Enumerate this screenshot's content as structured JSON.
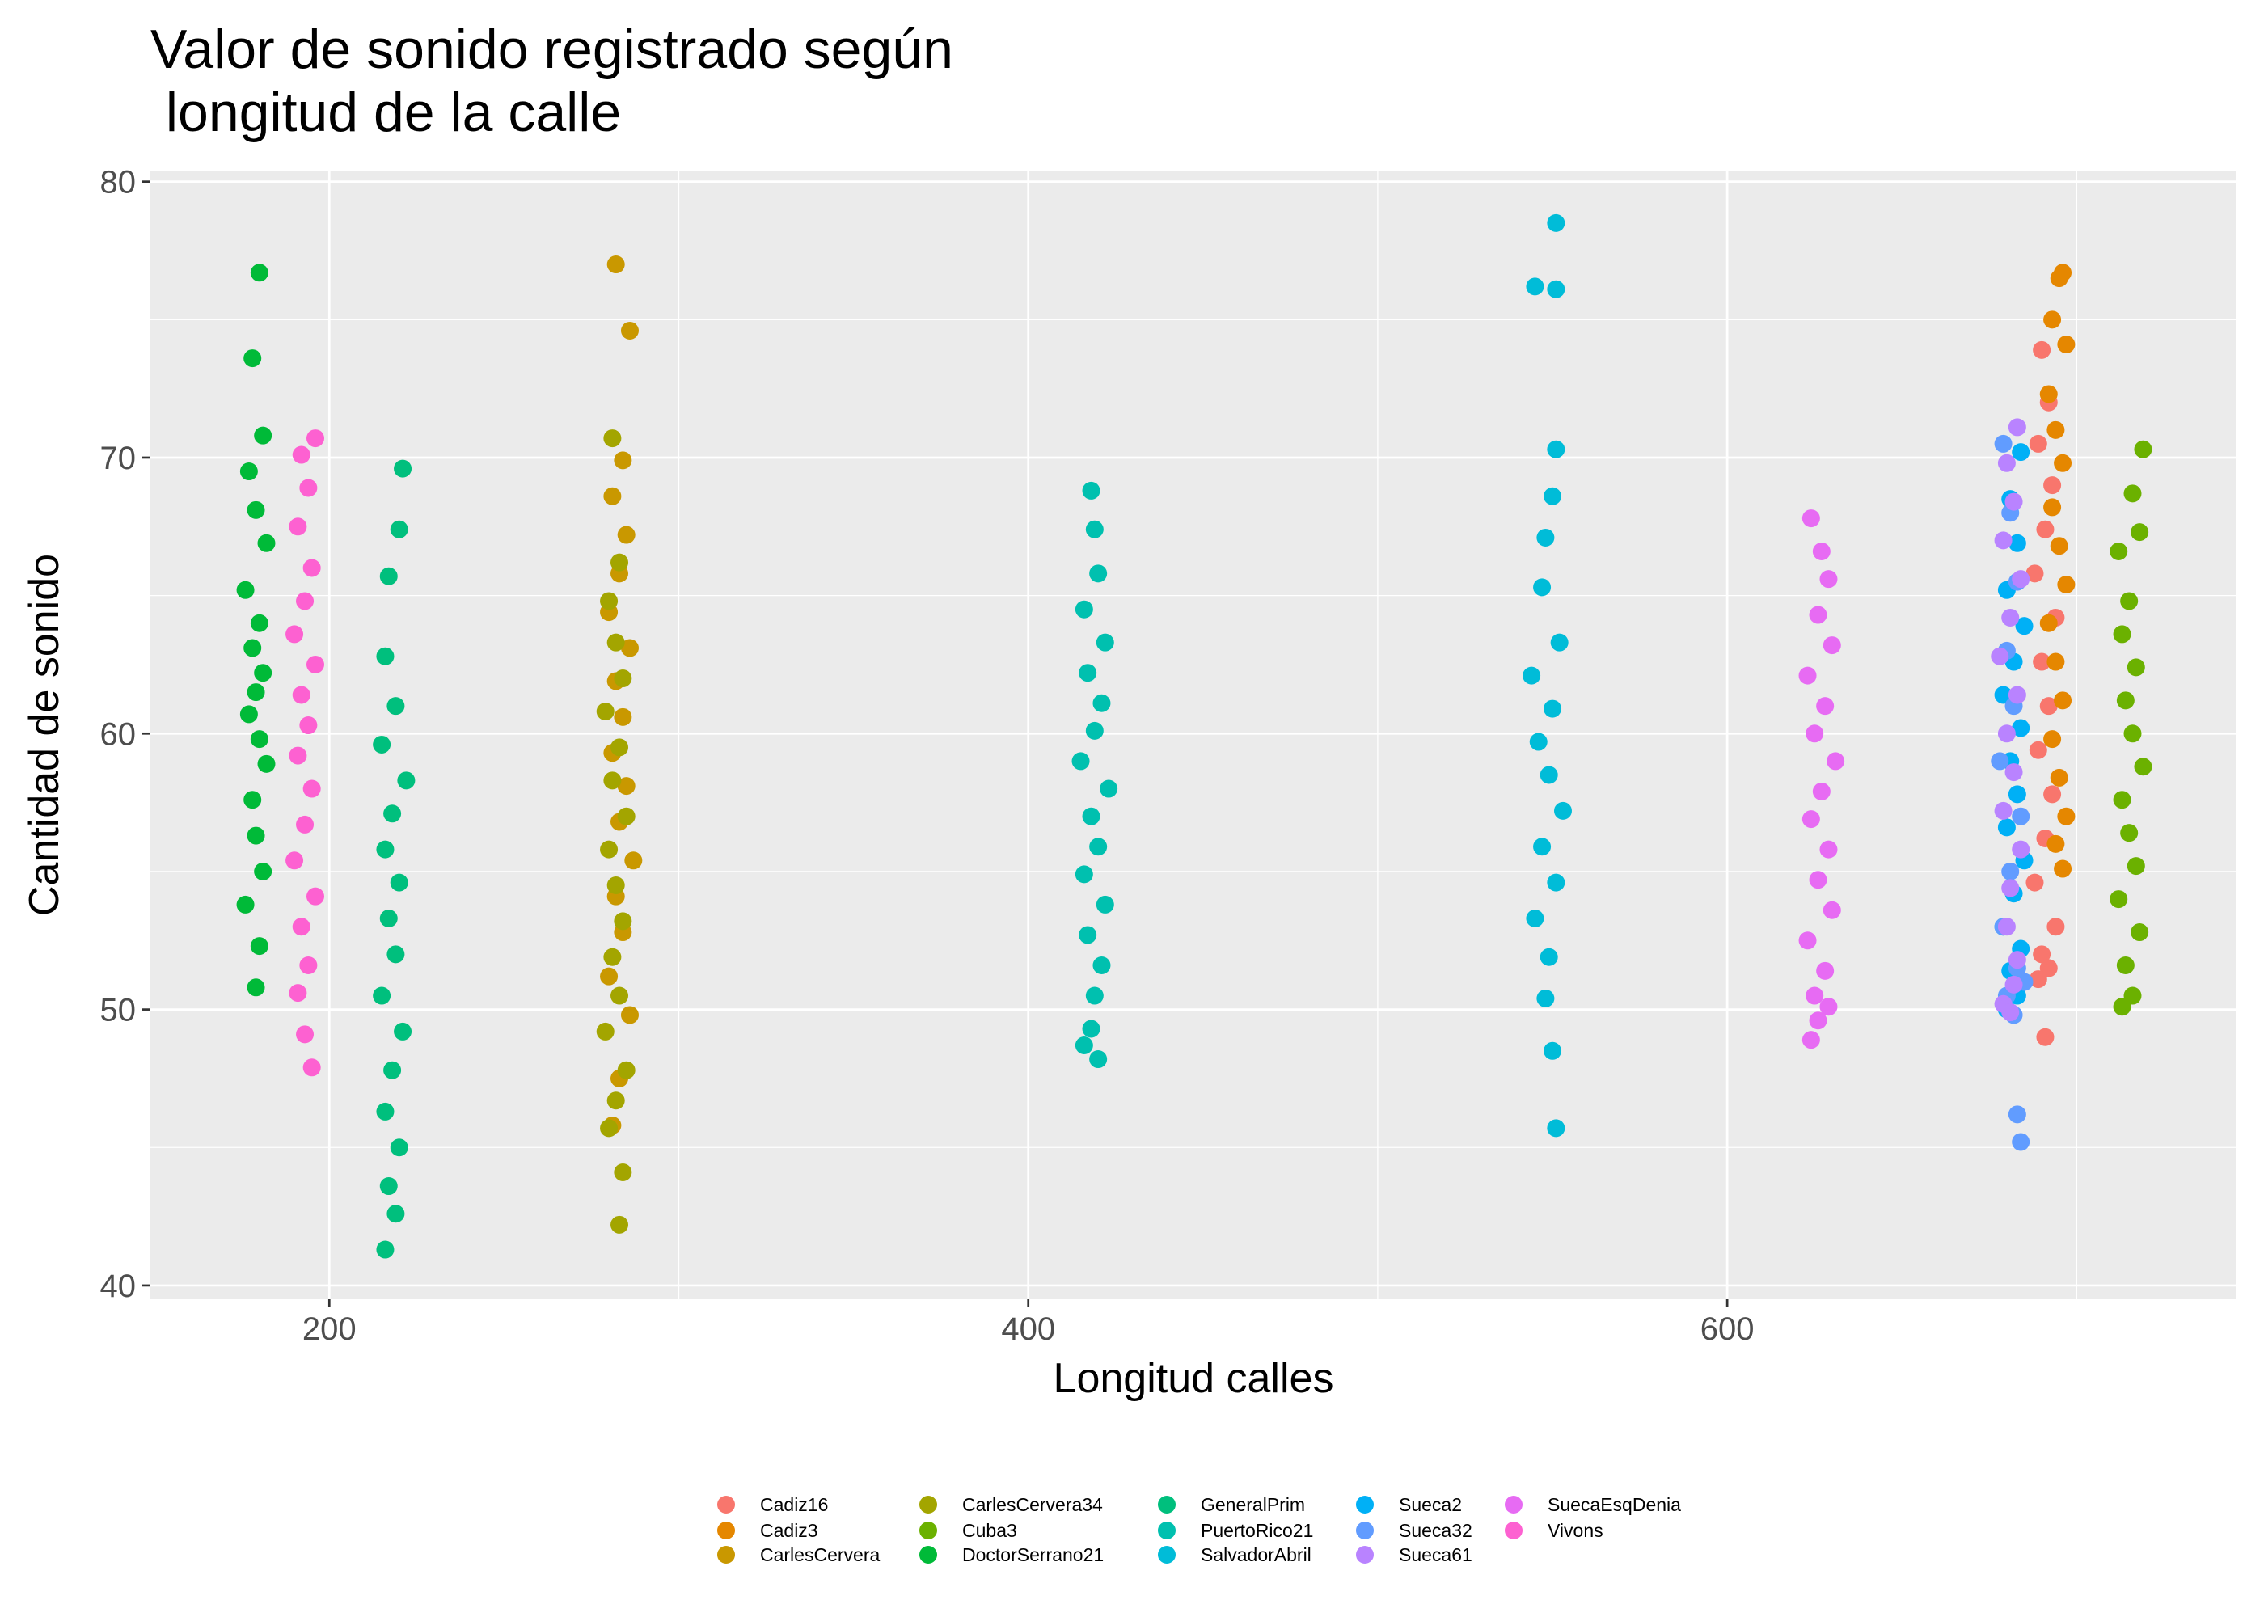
{
  "chart_data": {
    "type": "scatter",
    "title": "Valor de sonido registrado según\n longitud de la calle",
    "x_label": "Longitud calles",
    "y_label": "Cantidad de sonido",
    "xlim": [
      148.8,
      745.5
    ],
    "ylim": [
      39.5,
      80.4
    ],
    "xticks": [
      200,
      400,
      600
    ],
    "yticks": [
      40,
      50,
      60,
      70,
      80
    ],
    "xminor": [
      300,
      500,
      700
    ],
    "yminor": [
      45,
      55,
      65,
      75
    ],
    "grid": true,
    "legend_position": "bottom",
    "series": [
      {
        "name": "Cadiz16",
        "color": "#F8766D",
        "x": [
          690,
          692,
          689,
          693,
          691,
          688,
          694,
          690,
          692,
          689,
          693,
          691,
          688,
          694,
          690,
          692,
          689,
          691
        ],
        "values": [
          73.9,
          72.0,
          70.5,
          69.0,
          67.4,
          65.8,
          64.2,
          62.6,
          61.0,
          59.4,
          57.8,
          56.2,
          54.6,
          53.0,
          52.0,
          51.5,
          51.1,
          49.0
        ]
      },
      {
        "name": "Cadiz3",
        "color": "#E58700",
        "x": [
          696,
          695,
          693,
          697,
          692,
          694,
          696,
          693,
          695,
          697,
          692,
          694,
          696,
          693,
          695,
          697,
          694,
          696
        ],
        "values": [
          76.7,
          76.5,
          75.0,
          74.1,
          72.3,
          71.0,
          69.8,
          68.2,
          66.8,
          65.4,
          64.0,
          62.6,
          61.2,
          59.8,
          58.4,
          57.0,
          56.0,
          55.1
        ]
      },
      {
        "name": "CarlesCervera",
        "color": "#C99800",
        "x": [
          282,
          286,
          284,
          281,
          285,
          283,
          280,
          286,
          282,
          284,
          281,
          285,
          283,
          287,
          282,
          284,
          280,
          286,
          283,
          281
        ],
        "values": [
          77.0,
          74.6,
          69.9,
          68.6,
          67.2,
          65.8,
          64.4,
          63.1,
          61.9,
          60.6,
          59.3,
          58.1,
          56.8,
          55.4,
          54.1,
          52.8,
          51.2,
          49.8,
          47.5,
          45.8
        ]
      },
      {
        "name": "CarlesCervera34",
        "color": "#A3A500",
        "x": [
          281,
          283,
          280,
          282,
          284,
          279,
          283,
          281,
          285,
          280,
          282,
          284,
          281,
          283,
          279,
          285,
          282,
          280,
          284,
          283
        ],
        "values": [
          70.7,
          66.2,
          64.8,
          63.3,
          62.0,
          60.8,
          59.5,
          58.3,
          57.0,
          55.8,
          54.5,
          53.2,
          51.9,
          50.5,
          49.2,
          47.8,
          46.7,
          45.7,
          44.1,
          42.2
        ]
      },
      {
        "name": "Cuba3",
        "color": "#6BB100",
        "x": [
          719,
          716,
          712,
          718,
          715,
          713,
          717,
          714,
          716,
          719,
          713,
          715,
          717,
          712,
          718,
          714,
          716,
          713
        ],
        "values": [
          70.3,
          68.7,
          66.6,
          67.3,
          64.8,
          63.6,
          62.4,
          61.2,
          60.0,
          58.8,
          57.6,
          56.4,
          55.2,
          54.0,
          52.8,
          51.6,
          50.5,
          50.1
        ]
      },
      {
        "name": "DoctorSerrano21",
        "color": "#00BA38",
        "x": [
          180,
          178,
          181,
          177,
          179,
          182,
          176,
          180,
          178,
          181,
          179,
          177,
          180,
          182,
          178,
          179,
          181,
          176,
          180,
          179
        ],
        "values": [
          76.7,
          73.6,
          70.8,
          69.5,
          68.1,
          66.9,
          65.2,
          64.0,
          63.1,
          62.2,
          61.5,
          60.7,
          59.8,
          58.9,
          57.6,
          56.3,
          55.0,
          53.8,
          52.3,
          50.8
        ]
      },
      {
        "name": "GeneralPrim",
        "color": "#00BF7D",
        "x": [
          221,
          220,
          217,
          216,
          219,
          215,
          222,
          218,
          216,
          220,
          217,
          219,
          215,
          221,
          218,
          216,
          220,
          217,
          219,
          216
        ],
        "values": [
          69.6,
          67.4,
          65.7,
          62.8,
          61.0,
          59.6,
          58.3,
          57.1,
          55.8,
          54.6,
          53.3,
          52.0,
          50.5,
          49.2,
          47.8,
          46.3,
          45.0,
          43.6,
          42.6,
          41.3
        ]
      },
      {
        "name": "PuertoRico21",
        "color": "#00C0AF",
        "x": [
          418,
          419,
          420,
          416,
          422,
          417,
          421,
          419,
          415,
          423,
          418,
          420,
          416,
          422,
          417,
          421,
          419,
          418,
          416,
          420
        ],
        "values": [
          68.8,
          67.4,
          65.8,
          64.5,
          63.3,
          62.2,
          61.1,
          60.1,
          59.0,
          58.0,
          57.0,
          55.9,
          54.9,
          53.8,
          52.7,
          51.6,
          50.5,
          49.3,
          48.7,
          48.2
        ]
      },
      {
        "name": "SalvadorAbril",
        "color": "#00BCD8",
        "x": [
          551,
          545,
          551,
          551,
          550,
          548,
          547,
          552,
          544,
          550,
          546,
          549,
          553,
          547,
          551,
          545,
          549,
          548,
          550,
          551
        ],
        "values": [
          78.5,
          76.2,
          76.1,
          70.3,
          68.6,
          67.1,
          65.3,
          63.3,
          62.1,
          60.9,
          59.7,
          58.5,
          57.2,
          55.9,
          54.6,
          53.3,
          51.9,
          50.4,
          48.5,
          45.7
        ]
      },
      {
        "name": "Sueca2",
        "color": "#00B0F6",
        "x": [
          684,
          681,
          683,
          680,
          685,
          682,
          679,
          684,
          681,
          683,
          680,
          685,
          682,
          679,
          684,
          681,
          683,
          680
        ],
        "values": [
          70.2,
          68.5,
          66.9,
          65.2,
          63.9,
          62.6,
          61.4,
          60.2,
          59.0,
          57.8,
          56.6,
          55.4,
          54.2,
          53.0,
          52.2,
          51.4,
          50.5,
          50.0
        ]
      },
      {
        "name": "Sueca32",
        "color": "#619CFF",
        "x": [
          679,
          681,
          683,
          680,
          682,
          678,
          684,
          681,
          679,
          683,
          680,
          682,
          685,
          683,
          684
        ],
        "values": [
          70.5,
          68.0,
          65.5,
          63.0,
          61.0,
          59.0,
          57.0,
          55.0,
          53.0,
          51.5,
          50.5,
          49.8,
          51.0,
          46.2,
          45.2
        ]
      },
      {
        "name": "Sueca61",
        "color": "#B983FF",
        "x": [
          683,
          680,
          682,
          679,
          684,
          681,
          678,
          683,
          680,
          682,
          679,
          684,
          681,
          680,
          683,
          682,
          679,
          681
        ],
        "values": [
          71.1,
          69.8,
          68.4,
          67.0,
          65.6,
          64.2,
          62.8,
          61.4,
          60.0,
          58.6,
          57.2,
          55.8,
          54.4,
          53.0,
          51.8,
          50.9,
          50.2,
          49.9
        ]
      },
      {
        "name": "SuecaEsqDenia",
        "color": "#E76BF3",
        "x": [
          624,
          627,
          629,
          626,
          630,
          623,
          628,
          625,
          631,
          627,
          624,
          629,
          626,
          630,
          623,
          628,
          625,
          629,
          626,
          624
        ],
        "values": [
          67.8,
          66.6,
          65.6,
          64.3,
          63.2,
          62.1,
          61.0,
          60.0,
          59.0,
          57.9,
          56.9,
          55.8,
          54.7,
          53.6,
          52.5,
          51.4,
          50.5,
          50.1,
          49.6,
          48.9
        ]
      },
      {
        "name": "Vivons",
        "color": "#FD61D1",
        "x": [
          196,
          192,
          194,
          191,
          195,
          193,
          190,
          196,
          192,
          194,
          191,
          195,
          193,
          190,
          196,
          192,
          194,
          191,
          193,
          195
        ],
        "values": [
          70.7,
          70.1,
          68.9,
          67.5,
          66.0,
          64.8,
          63.6,
          62.5,
          61.4,
          60.3,
          59.2,
          58.0,
          56.7,
          55.4,
          54.1,
          53.0,
          51.6,
          50.6,
          49.1,
          47.9
        ]
      }
    ]
  }
}
